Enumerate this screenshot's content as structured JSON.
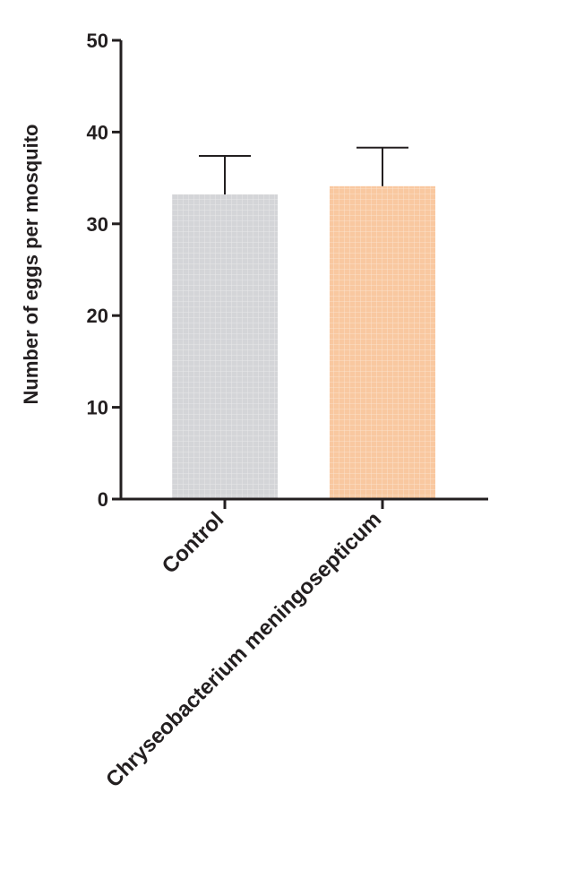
{
  "chart_data": {
    "type": "bar",
    "categories": [
      "Control",
      "Chryseobacterium meningosepticum"
    ],
    "values": [
      33.2,
      34.1
    ],
    "error_upper": [
      37.4,
      38.3
    ],
    "ylabel": "Number of eggs per mosquito",
    "xlabel": "",
    "ylim": [
      0,
      50
    ],
    "yticks": [
      0,
      10,
      20,
      30,
      40,
      50
    ],
    "grid": false,
    "bar_fill": "grid-pattern",
    "colors": [
      "#d4d5d8",
      "#f9c8a0"
    ]
  }
}
